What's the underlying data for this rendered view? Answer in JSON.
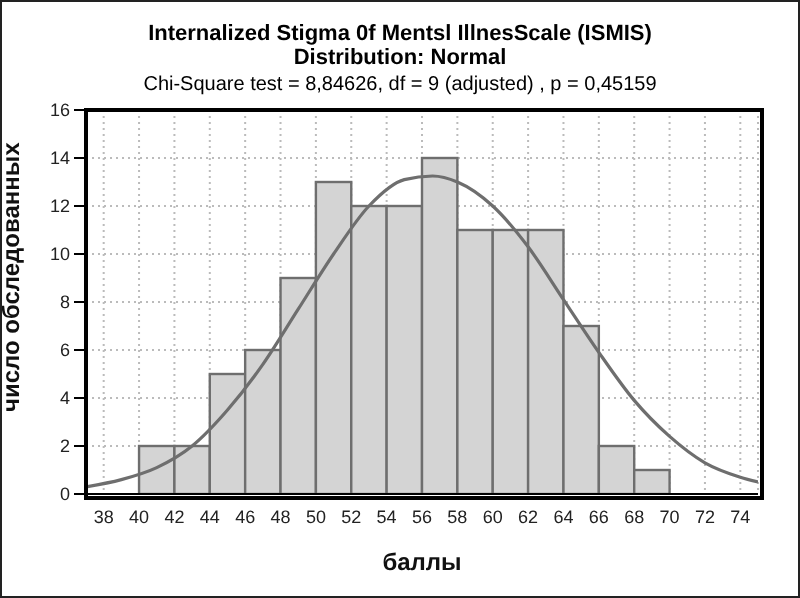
{
  "chart_data": {
    "type": "histogram",
    "title": "Internalized Stigma 0f Mentsl IllnesScale (ISMIS)",
    "subtitle": "Distribution: Normal",
    "annotations": [
      "Chi-Square test = 8,84626, df = 9 (adjusted) , p = 0,45159"
    ],
    "xlabel": "баллы",
    "ylabel": "число обследованных",
    "bins": [
      40,
      42,
      44,
      46,
      48,
      50,
      52,
      54,
      56,
      58,
      60,
      62,
      64,
      66,
      68,
      70
    ],
    "values": [
      2,
      2,
      5,
      6,
      9,
      13,
      12,
      12,
      14,
      11,
      11,
      11,
      7,
      2,
      1
    ],
    "color": "#d4d4d4",
    "series": [
      {
        "type": "line",
        "color": "#6e6e6e",
        "x": [
          37,
          39,
          41,
          43,
          45,
          47,
          49,
          51,
          53,
          55,
          56.6,
          58,
          60,
          62,
          64,
          66,
          68,
          70,
          72,
          74,
          75
        ],
        "values": [
          0.3,
          0.6,
          1.1,
          2.0,
          3.5,
          5.4,
          7.7,
          10.0,
          12.0,
          13.1,
          13.25,
          13.0,
          12.0,
          10.3,
          8.1,
          5.9,
          3.9,
          2.4,
          1.3,
          0.7,
          0.5
        ]
      }
    ],
    "xlim": [
      37,
      75
    ],
    "xticks": [
      38,
      40,
      42,
      44,
      46,
      48,
      50,
      52,
      54,
      56,
      58,
      60,
      62,
      64,
      66,
      68,
      70,
      72,
      74
    ],
    "ylim": [
      0,
      16
    ],
    "yticks": [
      0,
      2,
      4,
      6,
      8,
      10,
      12,
      14,
      16
    ],
    "grid": true,
    "marker": "none"
  }
}
